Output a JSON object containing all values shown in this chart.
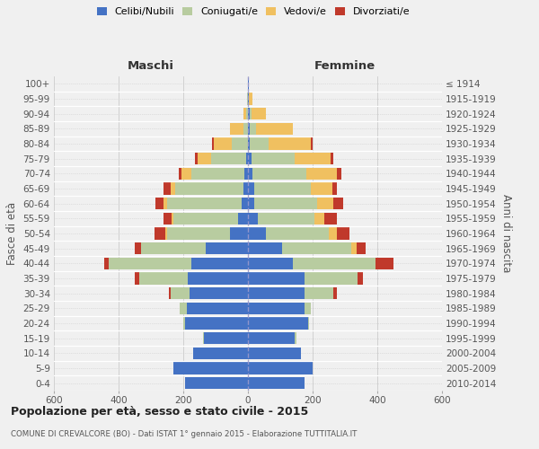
{
  "age_groups": [
    "0-4",
    "5-9",
    "10-14",
    "15-19",
    "20-24",
    "25-29",
    "30-34",
    "35-39",
    "40-44",
    "45-49",
    "50-54",
    "55-59",
    "60-64",
    "65-69",
    "70-74",
    "75-79",
    "80-84",
    "85-89",
    "90-94",
    "95-99",
    "100+"
  ],
  "birth_years": [
    "2010-2014",
    "2005-2009",
    "2000-2004",
    "1995-1999",
    "1990-1994",
    "1985-1989",
    "1980-1984",
    "1975-1979",
    "1970-1974",
    "1965-1969",
    "1960-1964",
    "1955-1959",
    "1950-1954",
    "1945-1949",
    "1940-1944",
    "1935-1939",
    "1930-1934",
    "1925-1929",
    "1920-1924",
    "1915-1919",
    "≤ 1914"
  ],
  "males_single": [
    195,
    230,
    170,
    135,
    195,
    190,
    180,
    185,
    175,
    130,
    55,
    30,
    20,
    15,
    10,
    5,
    0,
    0,
    0,
    0,
    0
  ],
  "males_married": [
    0,
    0,
    0,
    5,
    5,
    20,
    60,
    150,
    255,
    200,
    195,
    200,
    230,
    210,
    165,
    110,
    50,
    15,
    5,
    2,
    0
  ],
  "males_widowed": [
    0,
    0,
    0,
    0,
    0,
    0,
    0,
    0,
    0,
    0,
    5,
    5,
    10,
    15,
    30,
    40,
    55,
    40,
    10,
    2,
    0
  ],
  "males_divorced": [
    0,
    0,
    0,
    0,
    0,
    0,
    5,
    15,
    15,
    20,
    35,
    25,
    25,
    20,
    10,
    10,
    5,
    0,
    0,
    0,
    0
  ],
  "females_single": [
    175,
    200,
    165,
    145,
    185,
    175,
    175,
    175,
    140,
    105,
    55,
    30,
    20,
    20,
    15,
    10,
    5,
    5,
    5,
    2,
    2
  ],
  "females_married": [
    0,
    0,
    0,
    5,
    5,
    20,
    90,
    165,
    255,
    215,
    195,
    175,
    195,
    175,
    165,
    135,
    60,
    20,
    5,
    2,
    0
  ],
  "females_widowed": [
    0,
    0,
    0,
    0,
    0,
    0,
    0,
    0,
    0,
    15,
    25,
    30,
    50,
    65,
    95,
    110,
    130,
    115,
    45,
    10,
    2
  ],
  "females_divorced": [
    0,
    0,
    0,
    0,
    0,
    0,
    10,
    15,
    55,
    30,
    40,
    40,
    30,
    15,
    15,
    10,
    5,
    0,
    0,
    0,
    0
  ],
  "color_single": "#4472c4",
  "color_married": "#b8cca0",
  "color_widowed": "#f0c060",
  "color_divorced": "#c0392b",
  "xlim": 600,
  "title": "Popolazione per età, sesso e stato civile - 2015",
  "subtitle": "COMUNE DI CREVALCORE (BO) - Dati ISTAT 1° gennaio 2015 - Elaborazione TUTTITALIA.IT",
  "ylabel_left": "Fasce di età",
  "ylabel_right": "Anni di nascita",
  "label_males": "Maschi",
  "label_females": "Femmine",
  "legend_single": "Celibi/Nubili",
  "legend_married": "Coniugati/e",
  "legend_widowed": "Vedovi/e",
  "legend_divorced": "Divorziati/e",
  "bg_color": "#f0f0f0"
}
